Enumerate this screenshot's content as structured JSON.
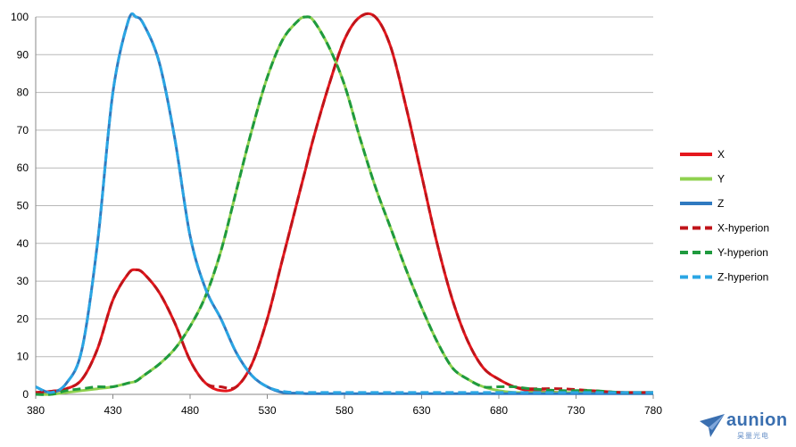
{
  "chart_data": {
    "type": "line",
    "title": "",
    "xlabel": "",
    "ylabel": "",
    "xlim": [
      380,
      780
    ],
    "ylim": [
      0,
      100
    ],
    "xticks": [
      380,
      430,
      480,
      530,
      580,
      630,
      680,
      730,
      780
    ],
    "yticks": [
      0,
      10,
      20,
      30,
      40,
      50,
      60,
      70,
      80,
      90,
      100
    ],
    "grid": "horizontal",
    "legend_position": "right",
    "x": [
      380,
      390,
      400,
      410,
      420,
      430,
      440,
      445,
      450,
      460,
      470,
      480,
      490,
      500,
      510,
      520,
      530,
      540,
      550,
      555,
      560,
      570,
      580,
      590,
      600,
      610,
      620,
      630,
      640,
      650,
      660,
      670,
      680,
      690,
      700,
      720,
      740,
      760,
      780
    ],
    "series": [
      {
        "name": "X",
        "color": "#e5171d",
        "style": "solid",
        "values": [
          0.5,
          0.8,
          1.5,
          4,
          12,
          25,
          32,
          33,
          32,
          27,
          19,
          9,
          3,
          1,
          2,
          8,
          20,
          36,
          52,
          60,
          68,
          82,
          94,
          100,
          100,
          92,
          76,
          58,
          40,
          25,
          14,
          7,
          4,
          2,
          1,
          0.5,
          0.5,
          0.5,
          0.5
        ]
      },
      {
        "name": "Y",
        "color": "#8fd14f",
        "style": "solid",
        "values": [
          0,
          0,
          0.5,
          1,
          1.5,
          2,
          3,
          3.5,
          5,
          8,
          12,
          18,
          26,
          38,
          54,
          70,
          84,
          94,
          99,
          100,
          99,
          92,
          82,
          68,
          55,
          44,
          33,
          23,
          14,
          7,
          4,
          2,
          1,
          0.5,
          0.5,
          0.5,
          0.5,
          0.5,
          0.5
        ]
      },
      {
        "name": "Z",
        "color": "#2f7ac0",
        "style": "solid",
        "values": [
          2,
          0.5,
          3,
          12,
          40,
          80,
          99,
          100,
          98,
          88,
          68,
          42,
          28,
          20,
          11,
          5,
          2,
          0.5,
          0.3,
          0.2,
          0.2,
          0.2,
          0.2,
          0.2,
          0.2,
          0.2,
          0.2,
          0.2,
          0.2,
          0.2,
          0.2,
          0.2,
          0.2,
          0.2,
          0.2,
          0.2,
          0.2,
          0.2,
          0.2
        ]
      },
      {
        "name": "X-hyperion",
        "color": "#c0141a",
        "style": "dashed",
        "values": [
          0.5,
          0.8,
          1.5,
          4,
          12,
          25,
          32,
          33,
          32,
          27,
          19,
          9,
          3,
          2,
          2,
          8,
          20,
          36,
          52,
          60,
          68,
          82,
          94,
          100,
          100,
          92,
          76,
          58,
          40,
          25,
          14,
          7,
          4,
          2,
          1.5,
          1.5,
          1,
          0.5,
          0.5
        ]
      },
      {
        "name": "Y-hyperion",
        "color": "#1f9a3e",
        "style": "dashed",
        "values": [
          0,
          0,
          1,
          1.5,
          2,
          2,
          3,
          3.5,
          5,
          8,
          12,
          18,
          26,
          38,
          54,
          70,
          84,
          94,
          99,
          100,
          99,
          92,
          82,
          68,
          55,
          44,
          33,
          23,
          14,
          7,
          4,
          2,
          2,
          2,
          1.5,
          1,
          1,
          0.5,
          0.5
        ]
      },
      {
        "name": "Z-hyperion",
        "color": "#2ba6e4",
        "style": "dashed",
        "values": [
          2,
          0.5,
          3,
          12,
          40,
          80,
          99,
          100,
          98,
          88,
          68,
          42,
          28,
          20,
          11,
          5,
          2,
          0.8,
          0.5,
          0.5,
          0.5,
          0.5,
          0.5,
          0.5,
          0.5,
          0.5,
          0.5,
          0.5,
          0.5,
          0.5,
          0.5,
          0.5,
          0.5,
          0.5,
          0.5,
          0.5,
          0.5,
          0.5,
          0.5
        ]
      }
    ]
  },
  "logo": {
    "text": "aunion",
    "subtext": "昊量光电",
    "color": "#3a6fb0"
  }
}
